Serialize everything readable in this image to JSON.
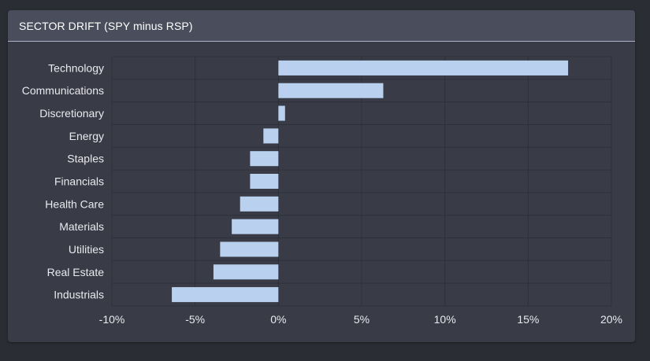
{
  "panel": {
    "title": "SECTOR DRIFT (SPY minus RSP)"
  },
  "colors": {
    "background": "#2b2d35",
    "panel": "#393c47",
    "header": "#4a4d5b",
    "bar": "#b9d1ef",
    "grid": "#2e3039",
    "text": "#e9e9ee"
  },
  "chart_data": {
    "type": "bar",
    "orientation": "horizontal",
    "title": "SECTOR DRIFT (SPY minus RSP)",
    "xlabel": "",
    "ylabel": "",
    "categories": [
      "Technology",
      "Communications",
      "Discretionary",
      "Energy",
      "Staples",
      "Financials",
      "Health Care",
      "Materials",
      "Utilities",
      "Real Estate",
      "Industrials"
    ],
    "values": [
      17.4,
      6.3,
      0.4,
      -0.9,
      -1.7,
      -1.7,
      -2.3,
      -2.8,
      -3.5,
      -3.9,
      -6.4
    ],
    "xlim": [
      -10,
      20
    ],
    "xticks": [
      -10,
      -5,
      0,
      5,
      10,
      15,
      20
    ],
    "xtick_labels": [
      "-10%",
      "-5%",
      "0%",
      "5%",
      "10%",
      "15%",
      "20%"
    ],
    "grid": true,
    "legend": "none"
  }
}
